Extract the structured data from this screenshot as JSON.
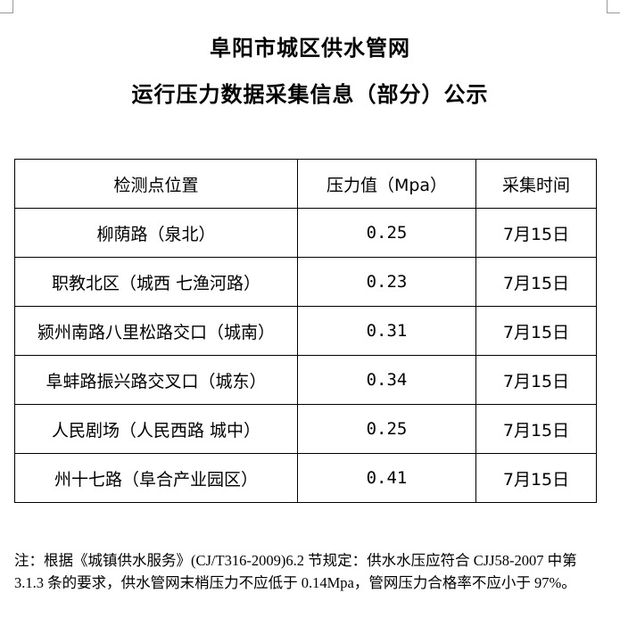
{
  "title_line1": "阜阳市城区供水管网",
  "title_line2": "运行压力数据采集信息（部分）公示",
  "table": {
    "headers": [
      "检测点位置",
      "压力值（Mpa）",
      "采集时间"
    ],
    "rows": [
      [
        "柳荫路（泉北）",
        "0.25",
        "7月15日"
      ],
      [
        "职教北区（城西  七渔河路）",
        "0.23",
        "7月15日"
      ],
      [
        "颍州南路八里松路交口（城南）",
        "0.31",
        "7月15日"
      ],
      [
        "阜蚌路振兴路交叉口（城东）",
        "0.34",
        "7月15日"
      ],
      [
        "人民剧场（人民西路  城中）",
        "0.25",
        "7月15日"
      ],
      [
        "州十七路（阜合产业园区）",
        "0.41",
        "7月15日"
      ]
    ]
  },
  "note": "注：根据《城镇供水服务》(CJ/T316-2009)6.2 节规定：供水水压应符合 CJJ58-2007 中第 3.1.3 条的要求，供水管网末梢压力不应低于 0.14Mpa，管网压力合格率不应小于 97%。"
}
